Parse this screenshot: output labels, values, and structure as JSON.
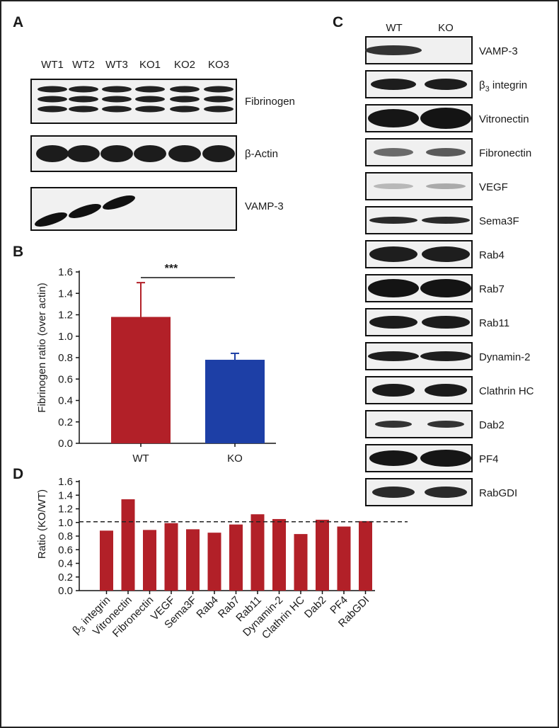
{
  "panels": {
    "a": "A",
    "b": "B",
    "c": "C",
    "d": "D"
  },
  "blot_a": {
    "lanes": [
      "WT1",
      "WT2",
      "WT3",
      "KO1",
      "KO2",
      "KO3"
    ],
    "rows": [
      "Fibrinogen",
      "β-Actin",
      "VAMP-3"
    ]
  },
  "blot_c": {
    "columns": [
      "WT",
      "KO"
    ],
    "rows": [
      {
        "prefix": "",
        "sub": "",
        "label": "VAMP-3"
      },
      {
        "prefix": "β",
        "sub": "3",
        "label": " integrin"
      },
      {
        "prefix": "",
        "sub": "",
        "label": "Vitronectin"
      },
      {
        "prefix": "",
        "sub": "",
        "label": "Fibronectin"
      },
      {
        "prefix": "",
        "sub": "",
        "label": "VEGF"
      },
      {
        "prefix": "",
        "sub": "",
        "label": "Sema3F"
      },
      {
        "prefix": "",
        "sub": "",
        "label": "Rab4"
      },
      {
        "prefix": "",
        "sub": "",
        "label": "Rab7"
      },
      {
        "prefix": "",
        "sub": "",
        "label": "Rab11"
      },
      {
        "prefix": "",
        "sub": "",
        "label": "Dynamin-2"
      },
      {
        "prefix": "",
        "sub": "",
        "label": "Clathrin HC"
      },
      {
        "prefix": "",
        "sub": "",
        "label": "Dab2"
      },
      {
        "prefix": "",
        "sub": "",
        "label": "PF4"
      },
      {
        "prefix": "",
        "sub": "",
        "label": "RabGDI"
      }
    ]
  },
  "chart_data": [
    {
      "panel": "B",
      "type": "bar",
      "categories": [
        "WT",
        "KO"
      ],
      "values": [
        1.18,
        0.78
      ],
      "errors": [
        0.32,
        0.06
      ],
      "colors": [
        "#b22028",
        "#1d3fa6"
      ],
      "ylabel": "Fibrinogen ratio (over actin)",
      "ylim": [
        0,
        1.6
      ],
      "yticks": [
        "0.0",
        "0.2",
        "0.4",
        "0.6",
        "0.8",
        "1.0",
        "1.2",
        "1.4",
        "1.6"
      ],
      "annotation": "***",
      "grid": false
    },
    {
      "panel": "D",
      "type": "bar",
      "categories": [
        "β3 integrin",
        "Vitronectin",
        "Fibronectin",
        "VEGF",
        "Sema3F",
        "Rab4",
        "Rab7",
        "Rab11",
        "Dynamin-2",
        "Clathrin HC",
        "Dab2",
        "PF4",
        "RabGDI"
      ],
      "tick_labels": [
        {
          "prefix": "β",
          "sub": "3",
          "label": " integrin"
        },
        {
          "prefix": "",
          "sub": "",
          "label": "Vitronectin"
        },
        {
          "prefix": "",
          "sub": "",
          "label": "Fibronectin"
        },
        {
          "prefix": "",
          "sub": "",
          "label": "VEGF"
        },
        {
          "prefix": "",
          "sub": "",
          "label": "Sema3F"
        },
        {
          "prefix": "",
          "sub": "",
          "label": "Rab4"
        },
        {
          "prefix": "",
          "sub": "",
          "label": "Rab7"
        },
        {
          "prefix": "",
          "sub": "",
          "label": "Rab11"
        },
        {
          "prefix": "",
          "sub": "",
          "label": "Dynamin-2"
        },
        {
          "prefix": "",
          "sub": "",
          "label": "Clathrin HC"
        },
        {
          "prefix": "",
          "sub": "",
          "label": "Dab2"
        },
        {
          "prefix": "",
          "sub": "",
          "label": "PF4"
        },
        {
          "prefix": "",
          "sub": "",
          "label": "RabGDI"
        }
      ],
      "values": [
        0.88,
        1.34,
        0.89,
        0.99,
        0.9,
        0.85,
        0.97,
        1.12,
        1.05,
        0.83,
        1.04,
        0.94,
        1.02
      ],
      "color": "#b22028",
      "ylabel": "Ratio (KO/WT)",
      "ylim": [
        0,
        1.6
      ],
      "yticks": [
        "0.0",
        "0.2",
        "0.4",
        "0.6",
        "0.8",
        "1.0",
        "1.2",
        "1.4",
        "1.6"
      ],
      "reference_line": 1.01,
      "grid": false
    }
  ]
}
